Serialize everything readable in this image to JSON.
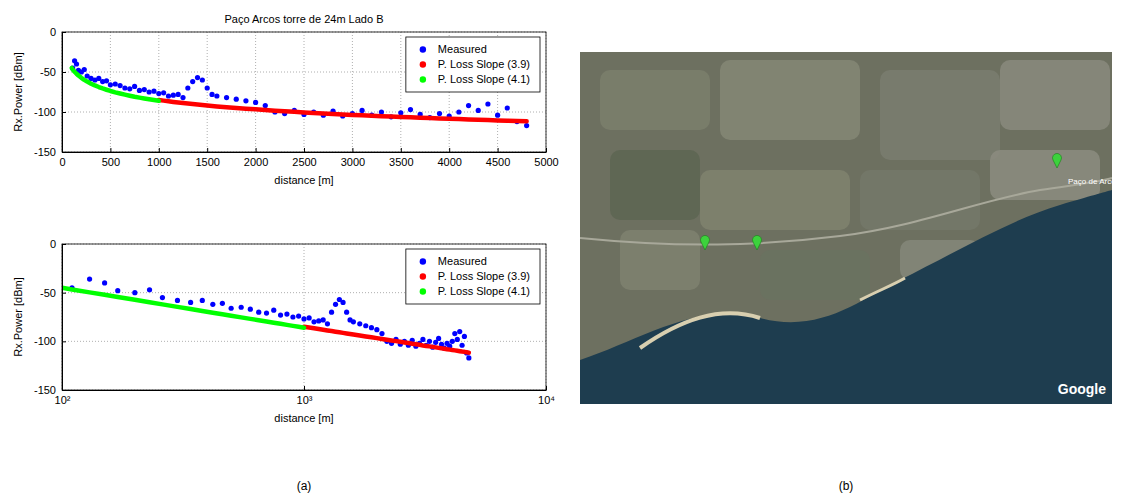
{
  "panel_labels": [
    "(a)",
    "(b)"
  ],
  "chart_data": [
    {
      "type": "scatter",
      "title": "Paço Arcos torre de 24m Lado B",
      "x_label": "distance [m]",
      "y_label": "Rx.Power [dBm]",
      "x": [
        100,
        110,
        130,
        150,
        170,
        200,
        230,
        260,
        300,
        340,
        380,
        420,
        460,
        500,
        550,
        600,
        650,
        700,
        750,
        800,
        850,
        900,
        950,
        1000,
        1050,
        1100,
        1150,
        1200,
        1250,
        1300,
        1350,
        1400,
        1450,
        1500,
        1550,
        1600,
        1700,
        1800,
        1900,
        2000,
        2100,
        2200,
        2300,
        2400,
        2500,
        2600,
        2700,
        2800,
        2900,
        3000,
        3100,
        3200,
        3300,
        3400,
        3500,
        3600,
        3700,
        3800,
        3900,
        4000,
        4100,
        4200,
        4300,
        4400,
        4500,
        4600,
        4700,
        4800
      ],
      "series": [
        {
          "name": "Measured",
          "color": "#0000ff",
          "marker": "dot",
          "type": "scatter",
          "values": [
            null,
            -45,
            -36,
            -40,
            -48,
            -50,
            -47,
            -55,
            -58,
            -60,
            -58,
            -62,
            -61,
            -66,
            -65,
            -67,
            -70,
            -71,
            -68,
            -73,
            -72,
            -75,
            -74,
            -77,
            -76,
            -80,
            -79,
            -78,
            -82,
            -70,
            -62,
            -57,
            -60,
            -70,
            -78,
            -80,
            -82,
            -84,
            -86,
            -88,
            -92,
            -100,
            -102,
            -98,
            -103,
            -100,
            -104,
            -99,
            -105,
            -102,
            -98,
            -104,
            -100,
            -106,
            -101,
            -97,
            -103,
            -107,
            -102,
            -105,
            -100,
            -92,
            -98,
            -90,
            -104,
            -95,
            -112,
            -117
          ]
        },
        {
          "name": "P. Loss Slope (3.9)",
          "color": "#ff0000",
          "marker": "dot",
          "type": "line",
          "values": [
            null,
            null,
            null,
            null,
            null,
            null,
            null,
            null,
            null,
            null,
            null,
            null,
            null,
            null,
            null,
            null,
            null,
            null,
            null,
            null,
            null,
            null,
            null,
            -85.0,
            -85.8,
            -86.6,
            -87.4,
            -88.1,
            -88.8,
            -89.4,
            -90.1,
            -90.7,
            -91.3,
            -91.9,
            -92.4,
            -93.0,
            -94.0,
            -95.0,
            -95.9,
            -96.7,
            -97.6,
            -98.4,
            -99.1,
            -99.8,
            -100.5,
            -101.2,
            -101.8,
            -102.4,
            -103.0,
            -103.6,
            -104.2,
            -104.7,
            -105.2,
            -105.7,
            -106.2,
            -106.7,
            -107.2,
            -107.6,
            -108.1,
            -108.5,
            -108.9,
            -109.3,
            -109.7,
            -110.1,
            -110.5,
            -110.8,
            -111.2,
            -111.6
          ]
        },
        {
          "name": "P. Loss Slope (4.1)",
          "color": "#00ff00",
          "marker": "dot",
          "type": "line",
          "values": [
            -45,
            -46.7,
            -49.7,
            -52.2,
            -54.4,
            -57.3,
            -59.8,
            -62.0,
            -64.6,
            -66.8,
            -68.8,
            -70.6,
            -72.2,
            -73.7,
            -75.4,
            -76.9,
            -78.3,
            -79.6,
            -80.9,
            -82.0,
            -83.1,
            -84.1,
            -85.1,
            -86.0,
            null,
            null,
            null,
            null,
            null,
            null,
            null,
            null,
            null,
            null,
            null,
            null,
            null,
            null,
            null,
            null,
            null,
            null,
            null,
            null,
            null,
            null,
            null,
            null,
            null,
            null,
            null,
            null,
            null,
            null,
            null,
            null,
            null,
            null,
            null,
            null,
            null,
            null,
            null,
            null,
            null,
            null,
            null,
            null
          ]
        }
      ],
      "xlim": [
        0,
        5000
      ],
      "xticks": [
        0,
        500,
        1000,
        1500,
        2000,
        2500,
        3000,
        3500,
        4000,
        4500,
        5000
      ],
      "ylim": [
        -150,
        0
      ],
      "yticks": [
        -150,
        -100,
        -50,
        0
      ],
      "grid": true,
      "legend": "northeast"
    },
    {
      "type": "scatter",
      "x_label": "distance [m]",
      "y_label": "Rx.Power [dBm]",
      "x": [
        100,
        110,
        130,
        150,
        170,
        200,
        230,
        260,
        300,
        340,
        380,
        420,
        460,
        500,
        550,
        600,
        650,
        700,
        750,
        800,
        850,
        900,
        950,
        1000,
        1050,
        1100,
        1150,
        1200,
        1250,
        1300,
        1350,
        1400,
        1450,
        1500,
        1550,
        1600,
        1700,
        1800,
        1900,
        2000,
        2100,
        2200,
        2300,
        2400,
        2500,
        2600,
        2700,
        2800,
        2900,
        3000,
        3100,
        3200,
        3300,
        3400,
        3500,
        3600,
        3700,
        3800,
        3900,
        4000,
        4100,
        4200,
        4300,
        4400,
        4500,
        4600,
        4700,
        4800
      ],
      "series": [
        {
          "name": "Measured",
          "color": "#0000ff",
          "marker": "dot",
          "type": "scatter",
          "values": [
            null,
            -45,
            -36,
            -40,
            -48,
            -50,
            -47,
            -55,
            -58,
            -60,
            -58,
            -62,
            -61,
            -66,
            -65,
            -67,
            -70,
            -71,
            -68,
            -73,
            -72,
            -75,
            -74,
            -77,
            -76,
            -80,
            -79,
            -78,
            -82,
            -70,
            -62,
            -57,
            -60,
            -70,
            -78,
            -80,
            -82,
            -84,
            -86,
            -88,
            -92,
            -100,
            -102,
            -98,
            -103,
            -100,
            -104,
            -99,
            -105,
            -102,
            -98,
            -104,
            -100,
            -106,
            -101,
            -97,
            -103,
            -107,
            -102,
            -105,
            -100,
            -92,
            -98,
            -90,
            -104,
            -95,
            -112,
            -117
          ]
        },
        {
          "name": "P. Loss Slope (3.9)",
          "color": "#ff0000",
          "marker": "dot",
          "type": "line",
          "values": [
            null,
            null,
            null,
            null,
            null,
            null,
            null,
            null,
            null,
            null,
            null,
            null,
            null,
            null,
            null,
            null,
            null,
            null,
            null,
            null,
            null,
            null,
            null,
            -85.0,
            -85.8,
            -86.6,
            -87.4,
            -88.1,
            -88.8,
            -89.4,
            -90.1,
            -90.7,
            -91.3,
            -91.9,
            -92.4,
            -93.0,
            -94.0,
            -95.0,
            -95.9,
            -96.7,
            -97.6,
            -98.4,
            -99.1,
            -99.8,
            -100.5,
            -101.2,
            -101.8,
            -102.4,
            -103.0,
            -103.6,
            -104.2,
            -104.7,
            -105.2,
            -105.7,
            -106.2,
            -106.7,
            -107.2,
            -107.6,
            -108.1,
            -108.5,
            -108.9,
            -109.3,
            -109.7,
            -110.1,
            -110.5,
            -110.8,
            -111.2,
            -111.6
          ]
        },
        {
          "name": "P. Loss Slope (4.1)",
          "color": "#00ff00",
          "marker": "dot",
          "type": "line",
          "values": [
            -45,
            -46.7,
            -49.7,
            -52.2,
            -54.4,
            -57.3,
            -59.8,
            -62.0,
            -64.6,
            -66.8,
            -68.8,
            -70.6,
            -72.2,
            -73.7,
            -75.4,
            -76.9,
            -78.3,
            -79.6,
            -80.9,
            -82.0,
            -83.1,
            -84.1,
            -85.1,
            -86.0,
            null,
            null,
            null,
            null,
            null,
            null,
            null,
            null,
            null,
            null,
            null,
            null,
            null,
            null,
            null,
            null,
            null,
            null,
            null,
            null,
            null,
            null,
            null,
            null,
            null,
            null,
            null,
            null,
            null,
            null,
            null,
            null,
            null,
            null,
            null,
            null,
            null,
            null,
            null,
            null,
            null,
            null,
            null,
            null
          ]
        }
      ],
      "xlim": [
        100,
        10000
      ],
      "xticks": [
        {
          "value": 100,
          "label": "10²"
        },
        {
          "value": 1000,
          "label": "10³"
        },
        {
          "value": 10000,
          "label": "10⁴"
        }
      ],
      "ylim": [
        -150,
        0
      ],
      "yticks": [
        -150,
        -100,
        -50,
        0
      ],
      "log": "x",
      "grid": true,
      "legend": "northeast"
    }
  ],
  "map": {
    "labels": [
      "Paço de Arcos"
    ],
    "attribution": "Google"
  }
}
